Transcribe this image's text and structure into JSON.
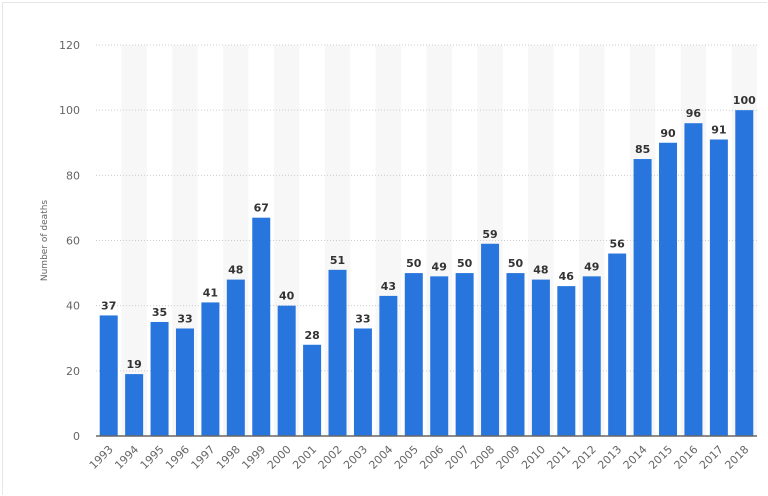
{
  "chart_data": {
    "type": "bar",
    "title": "",
    "xlabel": "",
    "ylabel": "Number of deaths",
    "ylim": [
      0,
      120
    ],
    "yticks": [
      0,
      20,
      40,
      60,
      80,
      100,
      120
    ],
    "grid": true,
    "bar_color": "#2876dd",
    "categories": [
      "1993",
      "1994",
      "1995",
      "1996",
      "1997",
      "1998",
      "1999",
      "2000",
      "2001",
      "2002",
      "2003",
      "2004",
      "2005",
      "2006",
      "2007",
      "2008",
      "2009",
      "2010",
      "2011",
      "2012",
      "2013",
      "2014",
      "2015",
      "2016",
      "2017",
      "2018"
    ],
    "values": [
      37,
      19,
      35,
      33,
      41,
      48,
      67,
      40,
      28,
      51,
      33,
      43,
      50,
      49,
      50,
      59,
      50,
      48,
      46,
      49,
      56,
      85,
      90,
      96,
      91,
      100
    ]
  }
}
